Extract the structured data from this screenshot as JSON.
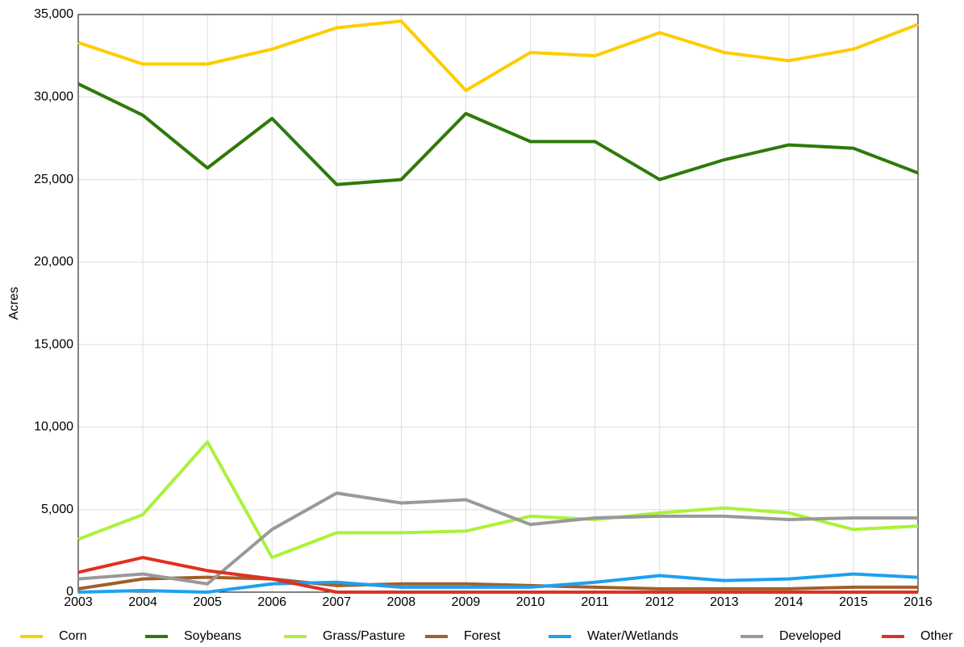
{
  "chart_data": {
    "type": "line",
    "y_label": "Acres",
    "x": [
      2003,
      2004,
      2005,
      2006,
      2007,
      2008,
      2009,
      2010,
      2011,
      2012,
      2013,
      2014,
      2015,
      2016
    ],
    "xlim": [
      2003,
      2016
    ],
    "xticks": [
      2003,
      2004,
      2005,
      2006,
      2007,
      2008,
      2009,
      2010,
      2011,
      2012,
      2013,
      2014,
      2015,
      2016
    ],
    "ylim": [
      0,
      35000
    ],
    "yticks": [
      0,
      {
        "value": 5000,
        "label": "5,000"
      },
      {
        "value": 10000,
        "label": "10,000"
      },
      {
        "value": 15000,
        "label": "15,000"
      },
      {
        "value": 20000,
        "label": "20,000"
      },
      {
        "value": 25000,
        "label": "25,000"
      },
      {
        "value": 30000,
        "label": "30,000"
      },
      {
        "value": 35000,
        "label": "35,000"
      }
    ],
    "grid": true,
    "legend": "bottom",
    "series": [
      {
        "name": "Corn",
        "color": "#ffcc00",
        "values": [
          33300,
          32000,
          32000,
          32900,
          34200,
          34600,
          30400,
          32700,
          32500,
          33900,
          32700,
          32200,
          32900,
          34400
        ]
      },
      {
        "name": "Soybeans",
        "color": "#2d7a0a",
        "values": [
          30800,
          28900,
          25700,
          28700,
          24700,
          25000,
          29000,
          27300,
          27300,
          25000,
          26200,
          27100,
          26900,
          25400
        ]
      },
      {
        "name": "Grass/Pasture",
        "color": "#aaf23a",
        "values": [
          3200,
          4700,
          9100,
          2100,
          3600,
          3600,
          3700,
          4600,
          4400,
          4800,
          5100,
          4800,
          3800,
          4000
        ]
      },
      {
        "name": "Forest",
        "color": "#a0602a",
        "values": [
          200,
          800,
          900,
          800,
          400,
          500,
          500,
          400,
          300,
          200,
          200,
          200,
          300,
          300
        ]
      },
      {
        "name": "Water/Wetlands",
        "color": "#1ea0f0",
        "values": [
          0,
          100,
          0,
          500,
          600,
          300,
          300,
          300,
          600,
          1000,
          700,
          800,
          1100,
          900
        ]
      },
      {
        "name": "Developed",
        "color": "#999999",
        "values": [
          800,
          1100,
          500,
          3800,
          6000,
          5400,
          5600,
          4100,
          4500,
          4600,
          4600,
          4400,
          4500,
          4500
        ]
      },
      {
        "name": "Other",
        "color": "#e03020",
        "values": [
          1200,
          2100,
          1300,
          800,
          0,
          0,
          0,
          0,
          0,
          0,
          0,
          0,
          0,
          0
        ]
      }
    ]
  }
}
